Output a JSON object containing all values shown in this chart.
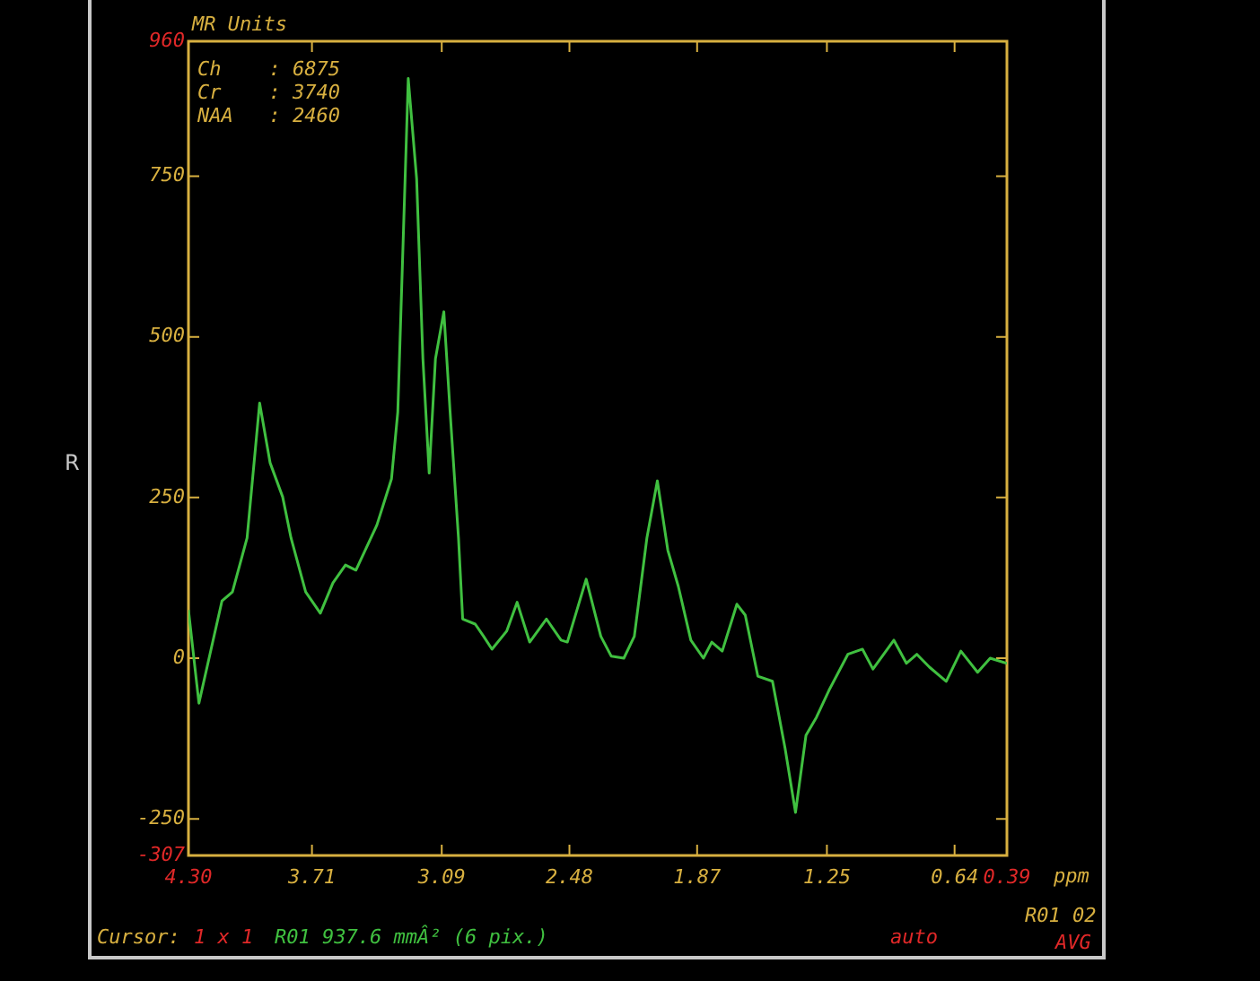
{
  "chart_data": {
    "type": "line",
    "ylabel": "MR Units",
    "xlabel": "ppm",
    "x": [
      4.3,
      4.25,
      4.14,
      4.09,
      4.02,
      3.96,
      3.91,
      3.85,
      3.81,
      3.74,
      3.67,
      3.61,
      3.55,
      3.5,
      3.4,
      3.33,
      3.3,
      3.25,
      3.21,
      3.18,
      3.15,
      3.12,
      3.08,
      3.05,
      3.01,
      2.99,
      2.93,
      2.89,
      2.85,
      2.78,
      2.73,
      2.67,
      2.59,
      2.52,
      2.49,
      2.4,
      2.33,
      2.28,
      2.22,
      2.17,
      2.11,
      2.06,
      2.01,
      1.96,
      1.9,
      1.84,
      1.8,
      1.75,
      1.68,
      1.64,
      1.58,
      1.51,
      1.45,
      1.4,
      1.35,
      1.3,
      1.24,
      1.15,
      1.08,
      1.03,
      0.93,
      0.87,
      0.82,
      0.76,
      0.68,
      0.61,
      0.53,
      0.47,
      0.39
    ],
    "series": [
      {
        "color": "#40c040",
        "values": [
          75,
          -70,
          89,
          103,
          187,
          397,
          304,
          251,
          187,
          103,
          70,
          117,
          145,
          137,
          207,
          279,
          383,
          902,
          746,
          466,
          288,
          466,
          539,
          383,
          187,
          61,
          53,
          34,
          14,
          42,
          87,
          25,
          61,
          28,
          25,
          123,
          34,
          3,
          0,
          34,
          187,
          276,
          168,
          112,
          28,
          0,
          25,
          11,
          84,
          67,
          -28,
          -36,
          -140,
          -240,
          -120,
          -92,
          -50,
          6,
          14,
          -17,
          28,
          -8,
          6,
          -14,
          -36,
          11,
          -22,
          0,
          -8
        ]
      }
    ],
    "xlim": [
      4.3,
      0.39
    ],
    "xticks": [
      {
        "value": 4.3,
        "label": "4.30"
      },
      3.71,
      3.09,
      2.48,
      1.87,
      1.25,
      0.64,
      0.39
    ],
    "ylim": [
      -307,
      960
    ],
    "yticks": [
      -307,
      -250,
      0,
      250,
      500,
      750,
      960
    ],
    "annotations": [
      "Ch    : 6875",
      "Cr    : 3740",
      "NAA   : 2460",
      "R",
      "R01 02",
      "Cursor:",
      "1 x 1",
      "R01 937.6 mmÂ² (6 pix.)",
      "auto",
      "AVG"
    ],
    "grid": false,
    "legend": false,
    "marker": "none",
    "line_style": "solid"
  }
}
